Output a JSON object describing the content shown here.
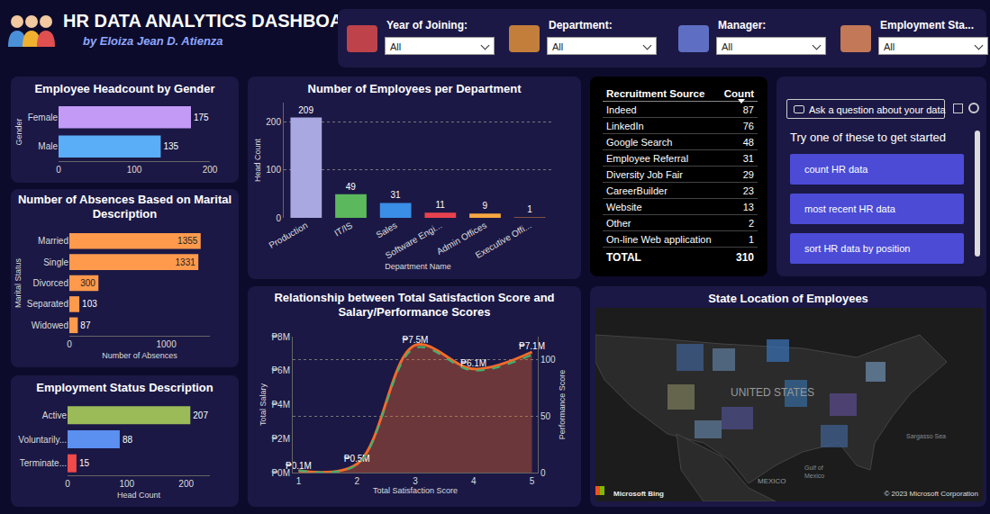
{
  "header": {
    "title": "HR DATA ANALYTICS DASHBOARD",
    "subtitle": "by Eloiza Jean D. Atienza"
  },
  "filters": [
    {
      "label": "Year of Joining:",
      "value": "All"
    },
    {
      "label": "Department:",
      "value": "All"
    },
    {
      "label": "Manager:",
      "value": "All"
    },
    {
      "label": "Employment Sta...",
      "value": "All"
    }
  ],
  "chart_data": [
    {
      "type": "bar",
      "title": "Employee Headcount by Gender",
      "orientation": "horizontal",
      "categories": [
        "Female",
        "Male"
      ],
      "values": [
        175,
        135
      ],
      "colors": [
        "#c39bf7",
        "#5aaef7"
      ],
      "xlim": [
        0,
        200
      ],
      "xticks": [
        0,
        100,
        200
      ],
      "ylabel": "Gender",
      "data_labels": true,
      "grid": false
    },
    {
      "type": "bar",
      "title": "Number of Absences Based on Marital Description",
      "orientation": "horizontal",
      "categories": [
        "Married",
        "Single",
        "Divorced",
        "Separated",
        "Widowed"
      ],
      "values": [
        1355,
        1331,
        300,
        103,
        87
      ],
      "color": "#ff9a4d",
      "xlim": [
        0,
        1450
      ],
      "xticks": [
        0,
        1000
      ],
      "xlabel": "Number of Absences",
      "ylabel": "Marital Status",
      "data_labels": true,
      "grid": false
    },
    {
      "type": "bar",
      "title": "Employment Status Description",
      "orientation": "horizontal",
      "categories": [
        "Active",
        "Voluntarily...",
        "Terminate..."
      ],
      "values": [
        207,
        88,
        15
      ],
      "colors": [
        "#9bbb59",
        "#5b8ff0",
        "#f04a4a"
      ],
      "xlim": [
        0,
        240
      ],
      "xticks": [
        0,
        100,
        200
      ],
      "xlabel": "Head Count",
      "data_labels": true,
      "grid": false
    },
    {
      "type": "bar",
      "title": "Number of Employees per Department",
      "categories": [
        "Production",
        "IT/IS",
        "Sales",
        "Software Engi...",
        "Admin Offices",
        "Executive Offi..."
      ],
      "values": [
        209,
        49,
        31,
        11,
        9,
        1
      ],
      "colors": [
        "#a9a8e0",
        "#5cb85c",
        "#3a8ee6",
        "#e8424f",
        "#f5a742",
        "#e88a3a"
      ],
      "ylim": [
        0,
        240
      ],
      "yticks": [
        0,
        100,
        200
      ],
      "xlabel": "Department Name",
      "ylabel": "Head Count",
      "data_labels": true,
      "grid": true
    },
    {
      "type": "area",
      "title": "Relationship between Total Satisfaction Score and Salary/Performance Scores",
      "x": [
        1,
        2,
        3,
        4,
        5
      ],
      "xlim": [
        0.9,
        5.1
      ],
      "xticks": [
        1,
        2,
        3,
        4,
        5
      ],
      "ylim": [
        0,
        8000000
      ],
      "yticks": [
        {
          "value": 0,
          "label": "₱0M"
        },
        {
          "value": 2000000,
          "label": "₱2M"
        },
        {
          "value": 4000000,
          "label": "₱4M"
        },
        {
          "value": 6000000,
          "label": "₱6M"
        },
        {
          "value": 8000000,
          "label": "₱8M"
        }
      ],
      "y2lim": [
        0,
        120
      ],
      "y2ticks": [
        0,
        50,
        100
      ],
      "xlabel": "Total Satisfaction Score",
      "ylabel": "Total Salary",
      "y2label": "Performance Score",
      "data_labels": true,
      "grid": true,
      "series": [
        {
          "name": "Total Salary",
          "type": "area",
          "color": "#f26b2a",
          "values": [
            100000,
            500000,
            7500000,
            6100000,
            7100000
          ],
          "value_labels": [
            "₱0.1M",
            "₱0.5M",
            "₱7.5M",
            "₱6.1M",
            "₱7.1M"
          ]
        },
        {
          "name": "Performance Score",
          "type": "line",
          "axis": "y2",
          "color": "#3cb371",
          "line_style": "dashed",
          "values": [
            2,
            7,
            110,
            90,
            104
          ]
        }
      ]
    }
  ],
  "table": {
    "columns": [
      "Recruitment Source",
      "Count"
    ],
    "rows": [
      [
        "Indeed",
        87
      ],
      [
        "LinkedIn",
        76
      ],
      [
        "Google Search",
        48
      ],
      [
        "Employee Referral",
        31
      ],
      [
        "Diversity Job Fair",
        29
      ],
      [
        "CareerBuilder",
        23
      ],
      [
        "Website",
        13
      ],
      [
        "Other",
        2
      ],
      [
        "On-line Web application",
        1
      ]
    ],
    "total": [
      "TOTAL",
      310
    ]
  },
  "qa": {
    "button": "Ask a question about your data",
    "prompt": "Try one of these to get started",
    "suggestions": [
      "count HR data",
      "most recent HR data",
      "sort HR data by position"
    ]
  },
  "map": {
    "title": "State Location of Employees",
    "country": "UNITED STATES",
    "neighbor": "MEXICO",
    "gulf": "Gulf of Mexico",
    "sea": "Sargasso Sea",
    "attribution": "Microsoft Bing",
    "copyright": "© 2023 Microsoft Corporation"
  }
}
